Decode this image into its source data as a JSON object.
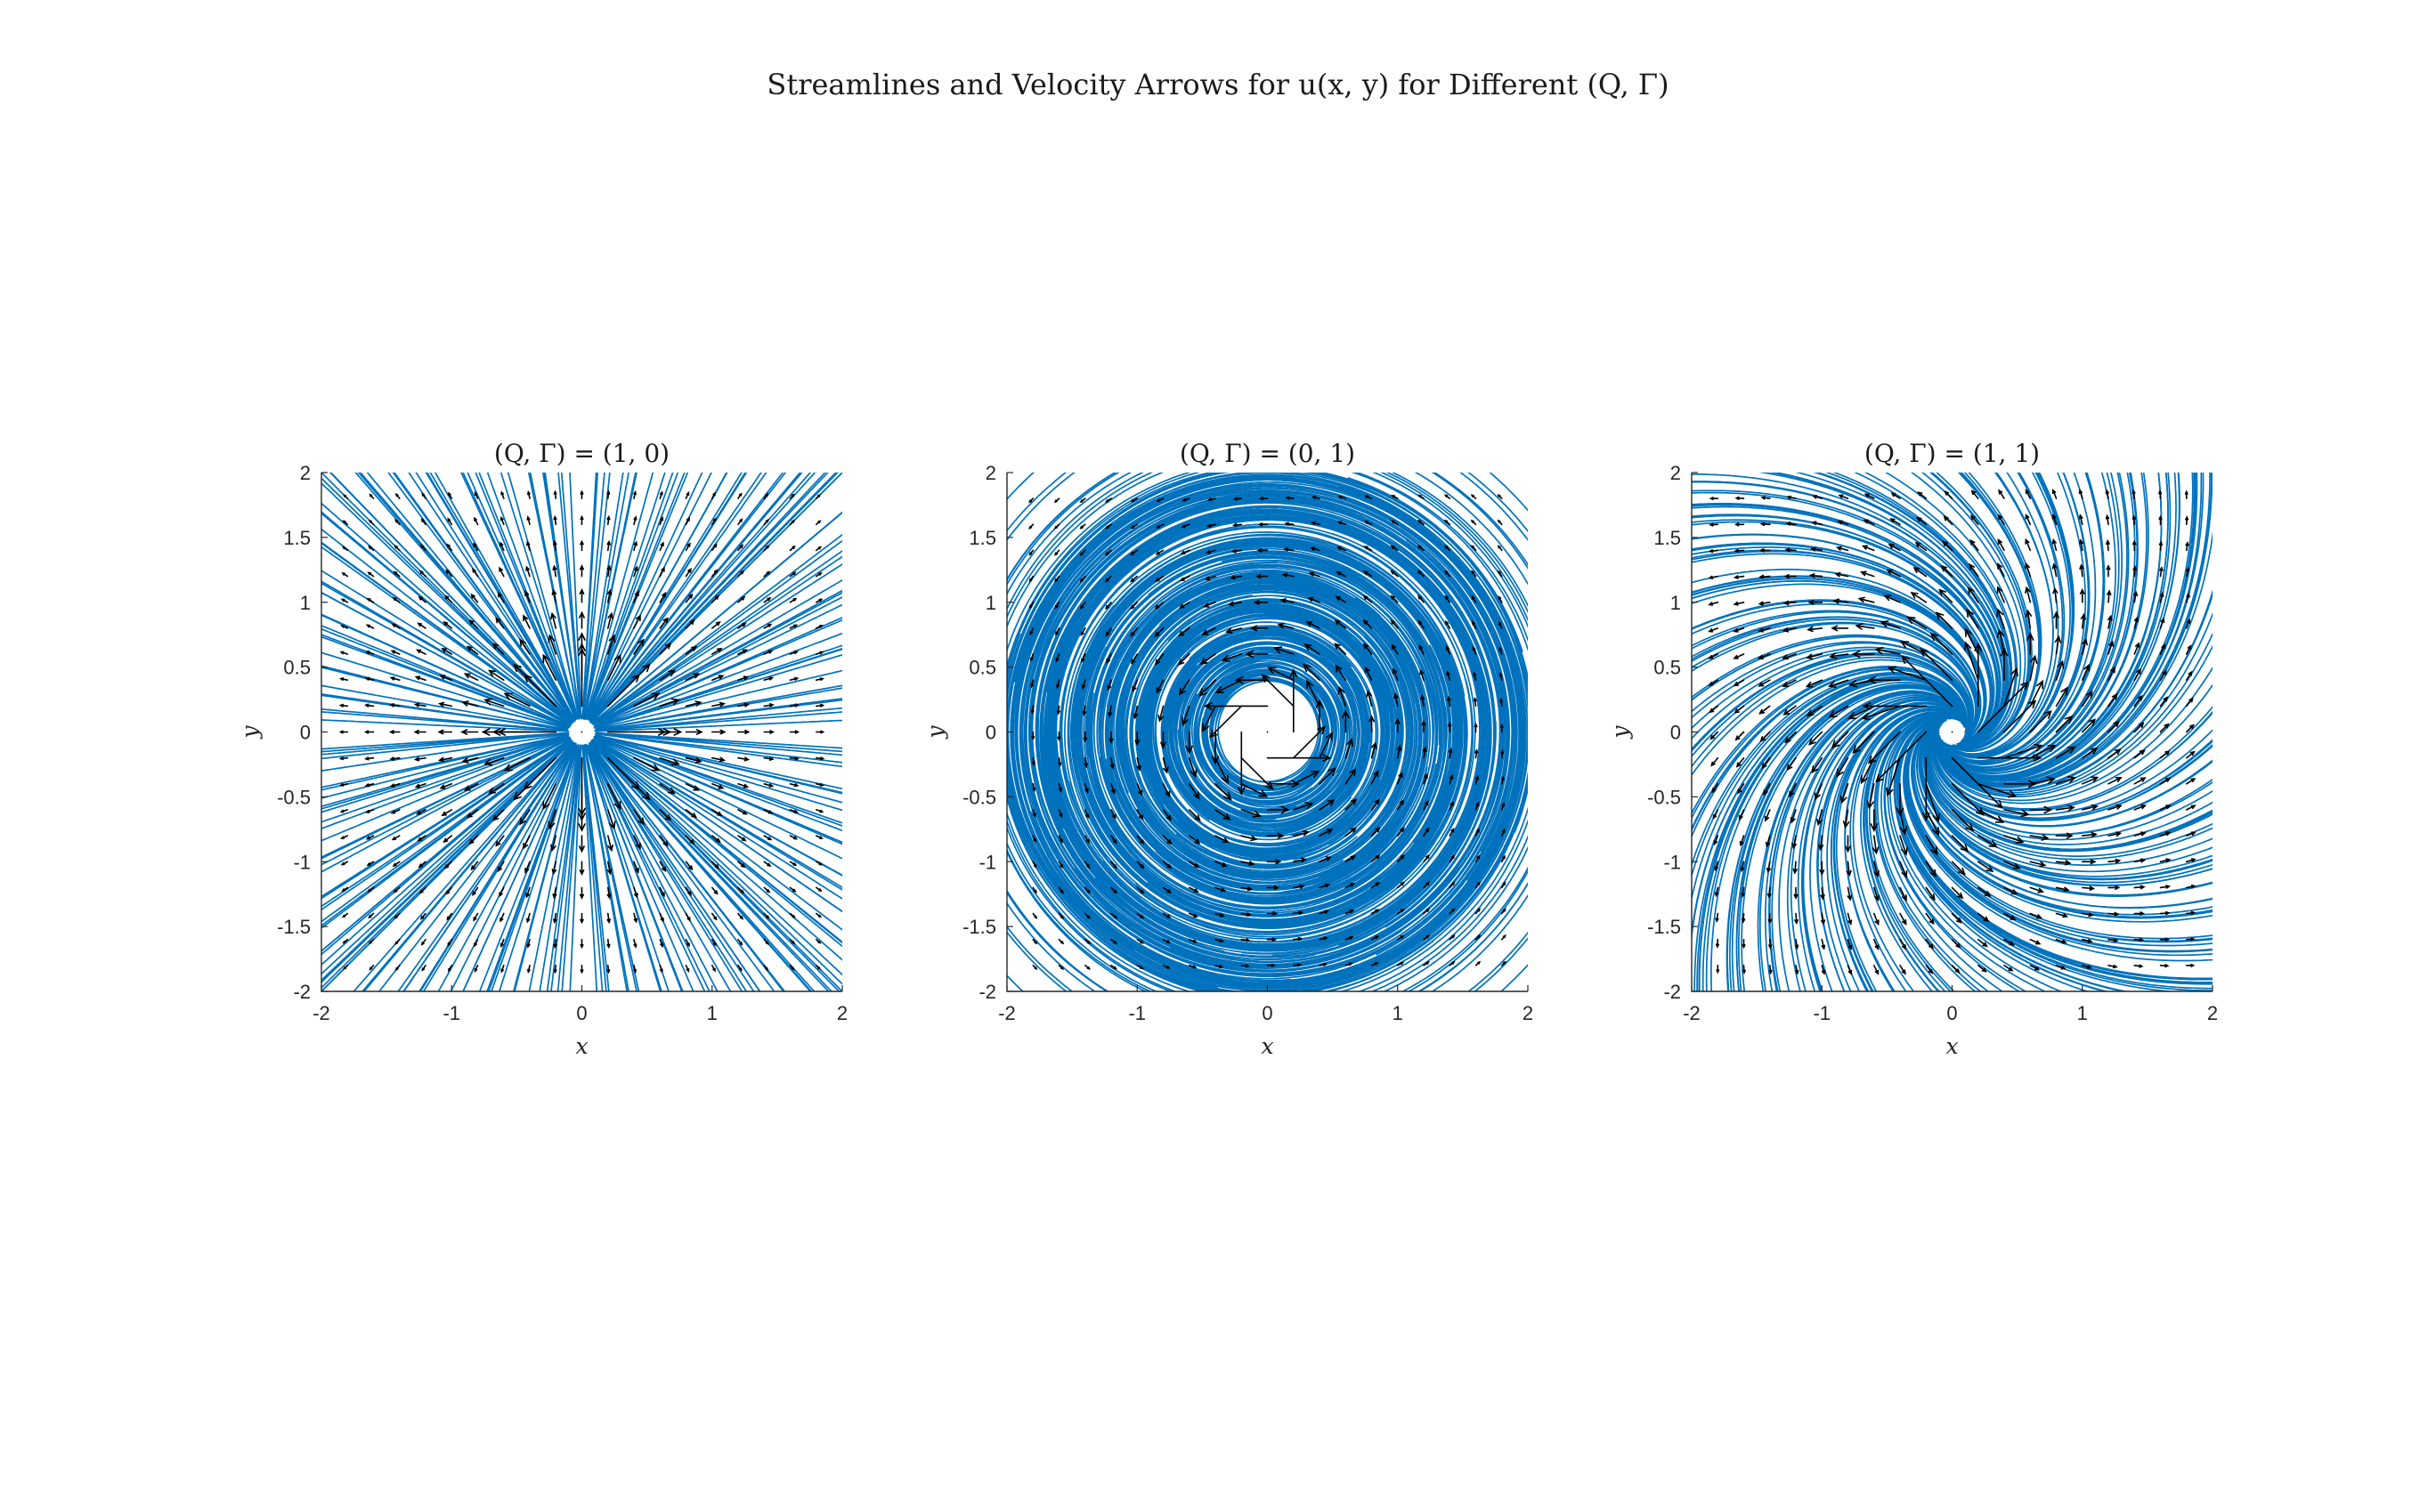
{
  "figure": {
    "title": "Streamlines and Velocity Arrows for u(x, y) for Different (Q, Γ)"
  },
  "chart_data": [
    {
      "type": "streamline",
      "title": "(Q, Γ) = (1, 0)",
      "Q": 1,
      "Gamma": 0,
      "xlabel": "x",
      "ylabel": "y",
      "xlim": [
        -2,
        2
      ],
      "ylim": [
        -2,
        2
      ],
      "xticks": [
        "-2",
        "-1",
        "0",
        "1",
        "2"
      ],
      "yticks": [
        "-2",
        "-1.5",
        "-1",
        "-0.5",
        "0",
        "0.5",
        "1",
        "1.5",
        "2"
      ],
      "grid": false,
      "stream_color": "#0072BD",
      "arrow_color": "#000000"
    },
    {
      "type": "streamline",
      "title": "(Q, Γ) = (0, 1)",
      "Q": 0,
      "Gamma": 1,
      "xlabel": "x",
      "ylabel": "y",
      "xlim": [
        -2,
        2
      ],
      "ylim": [
        -2,
        2
      ],
      "xticks": [
        "-2",
        "-1",
        "0",
        "1",
        "2"
      ],
      "yticks": [
        "-2",
        "-1.5",
        "-1",
        "-0.5",
        "0",
        "0.5",
        "1",
        "1.5",
        "2"
      ],
      "grid": false,
      "stream_color": "#0072BD",
      "arrow_color": "#000000"
    },
    {
      "type": "streamline",
      "title": "(Q, Γ) = (1, 1)",
      "Q": 1,
      "Gamma": 1,
      "xlabel": "x",
      "ylabel": "y",
      "xlim": [
        -2,
        2
      ],
      "ylim": [
        -2,
        2
      ],
      "xticks": [
        "-2",
        "-1",
        "0",
        "1",
        "2"
      ],
      "yticks": [
        "-2",
        "-1.5",
        "-1",
        "-0.5",
        "0",
        "0.5",
        "1",
        "1.5",
        "2"
      ],
      "grid": false,
      "stream_color": "#0072BD",
      "arrow_color": "#000000"
    }
  ]
}
